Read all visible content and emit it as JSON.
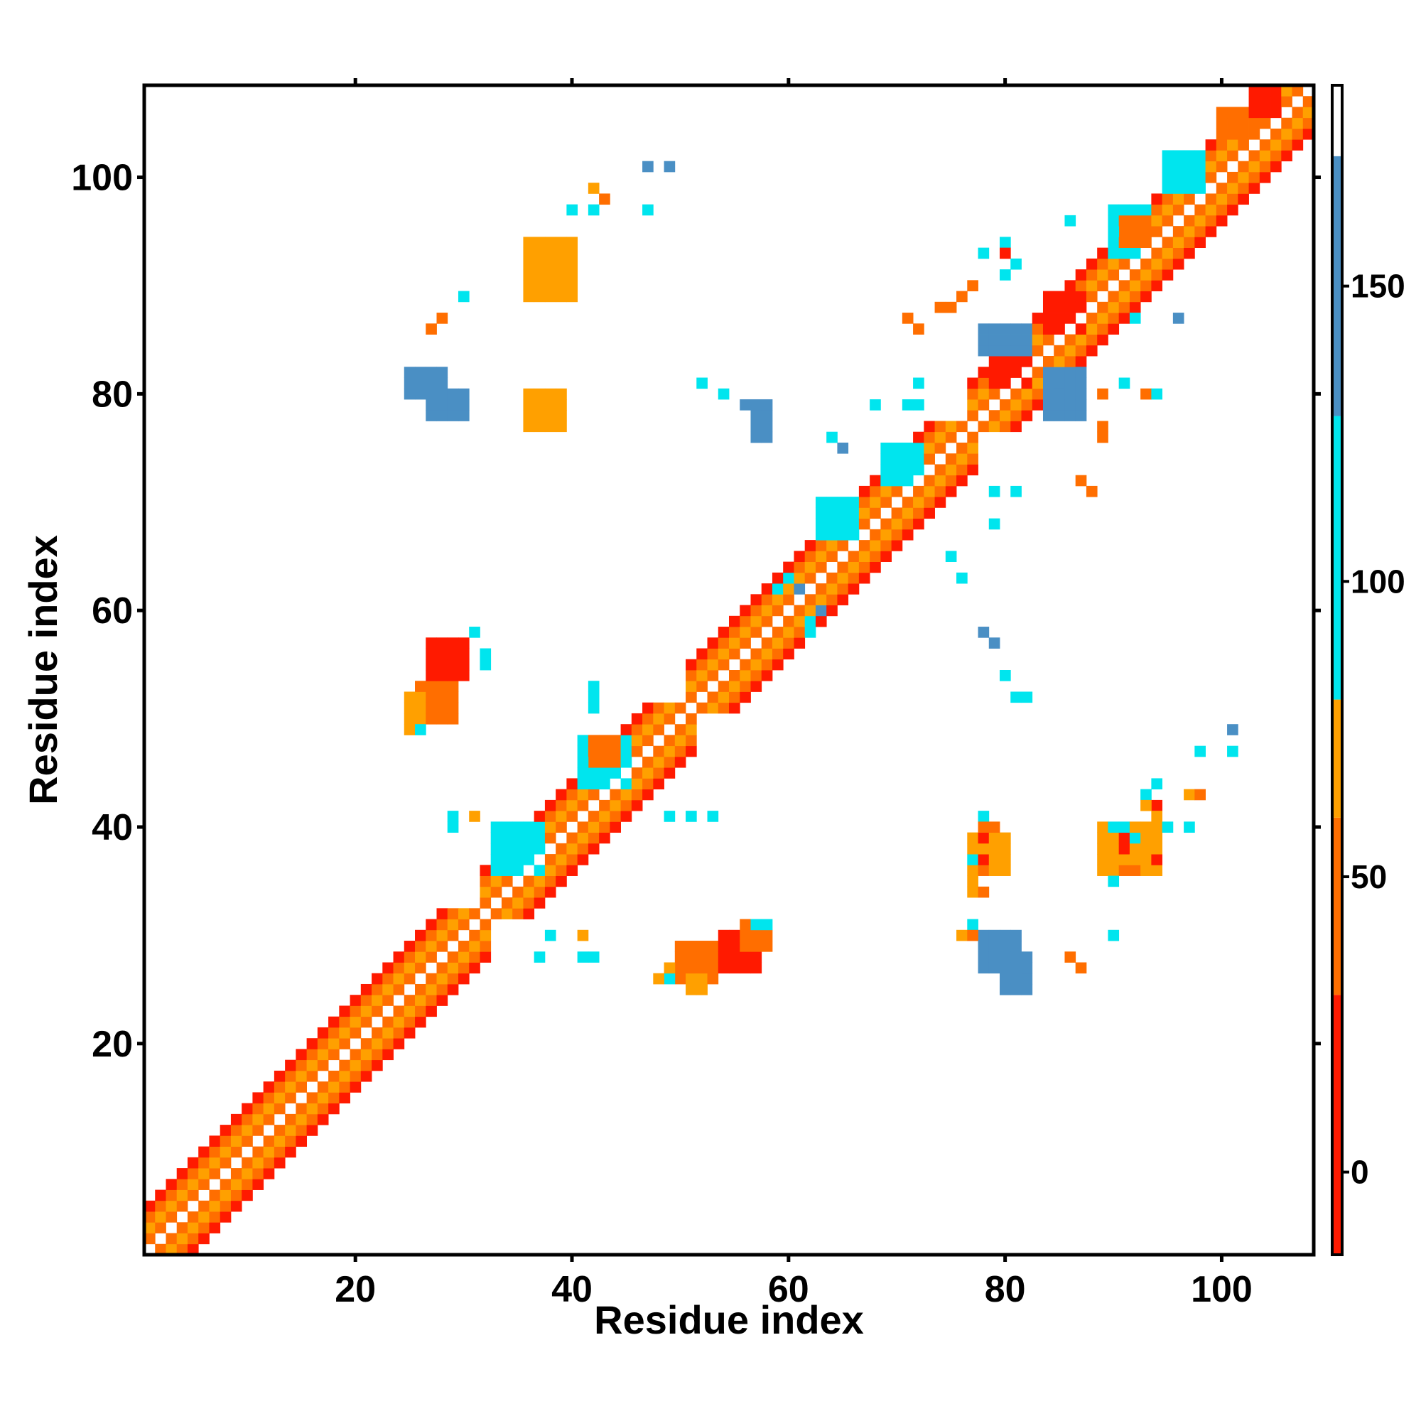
{
  "chart_data": {
    "type": "heatmap",
    "title": "",
    "xlabel": "Residue index",
    "ylabel": "Residue index",
    "xlim": [
      1,
      108
    ],
    "ylim": [
      1,
      108
    ],
    "x_ticks": [
      20,
      40,
      60,
      80,
      100
    ],
    "y_ticks": [
      20,
      40,
      60,
      80,
      100
    ],
    "symmetric": true,
    "grid": false,
    "colorbar": {
      "placement": "right",
      "range": [
        -14,
        184
      ],
      "ticks": [
        0,
        50,
        100,
        150
      ],
      "bands": [
        {
          "from": -14,
          "to": 30,
          "color": "#ff1a00"
        },
        {
          "from": 30,
          "to": 60,
          "color": "#ff6e00"
        },
        {
          "from": 60,
          "to": 80,
          "color": "#ffa000"
        },
        {
          "from": 80,
          "to": 128,
          "color": "#00e5ee"
        },
        {
          "from": 128,
          "to": 172,
          "color": "#4a8fc4"
        },
        {
          "from": 172,
          "to": 184,
          "color": "#ffffff"
        }
      ]
    },
    "levels": [
      {
        "id": "r",
        "name": "red",
        "value": 10,
        "color": "#ff1a00"
      },
      {
        "id": "o",
        "name": "orange-red",
        "value": 45,
        "color": "#ff6e00"
      },
      {
        "id": "y",
        "name": "orange",
        "value": 70,
        "color": "#ffa000"
      },
      {
        "id": "c",
        "name": "cyan",
        "value": 100,
        "color": "#00e5ee"
      },
      {
        "id": "b",
        "name": "blue",
        "value": 150,
        "color": "#4a8fc4"
      }
    ],
    "diagonal_band": {
      "offset_values": {
        "1": 45,
        "2": 70,
        "3": 45,
        "4": 10
      },
      "segments": [
        {
          "start": 1,
          "end": 31,
          "offsets": [
            1,
            2,
            3,
            4
          ]
        },
        {
          "start": 32,
          "end": 50,
          "offsets": [
            1,
            2,
            3,
            4
          ]
        },
        {
          "start": 51,
          "end": 76,
          "offsets": [
            1,
            2,
            3,
            4
          ]
        },
        {
          "start": 77,
          "end": 107,
          "offsets": [
            1,
            2,
            3,
            4
          ]
        }
      ]
    },
    "blocks": [
      {
        "i": [
          33,
          37
        ],
        "j": [
          36,
          40
        ],
        "v": 100
      },
      {
        "i": [
          41,
          45
        ],
        "j": [
          44,
          48
        ],
        "v": 100
      },
      {
        "i": [
          42,
          44
        ],
        "j": [
          46,
          48
        ],
        "v": 45
      },
      {
        "i": [
          63,
          66
        ],
        "j": [
          67,
          70
        ],
        "v": 100
      },
      {
        "i": [
          69,
          72
        ],
        "j": [
          72,
          75
        ],
        "v": 100
      },
      {
        "i": [
          79,
          82
        ],
        "j": [
          81,
          83
        ],
        "v": 10
      },
      {
        "i": [
          84,
          87
        ],
        "j": [
          86,
          89
        ],
        "v": 10
      },
      {
        "i": [
          90,
          93
        ],
        "j": [
          93,
          97
        ],
        "v": 100
      },
      {
        "i": [
          91,
          93
        ],
        "j": [
          94,
          96
        ],
        "v": 45
      },
      {
        "i": [
          95,
          98
        ],
        "j": [
          99,
          102
        ],
        "v": 100
      },
      {
        "i": [
          100,
          103
        ],
        "j": [
          104,
          106
        ],
        "v": 45
      },
      {
        "i": [
          103,
          105
        ],
        "j": [
          106,
          108
        ],
        "v": 10
      },
      {
        "i": [
          26,
          29
        ],
        "j": [
          50,
          53
        ],
        "v": 45
      },
      {
        "i": [
          27,
          30
        ],
        "j": [
          54,
          57
        ],
        "v": 10
      },
      {
        "i": [
          25,
          26
        ],
        "j": [
          49,
          52
        ],
        "v": 70
      },
      {
        "i": [
          50,
          53
        ],
        "j": [
          26,
          29
        ],
        "v": 45
      },
      {
        "i": [
          54,
          57
        ],
        "j": [
          27,
          30
        ],
        "v": 10
      },
      {
        "i": [
          56,
          58
        ],
        "j": [
          29,
          31
        ],
        "v": 45
      },
      {
        "i": [
          51,
          52
        ],
        "j": [
          25,
          26
        ],
        "v": 70
      },
      {
        "i": [
          25,
          28
        ],
        "j": [
          80,
          82
        ],
        "v": 150
      },
      {
        "i": [
          27,
          30
        ],
        "j": [
          78,
          80
        ],
        "v": 150
      },
      {
        "i": [
          78,
          81
        ],
        "j": [
          27,
          30
        ],
        "v": 150
      },
      {
        "i": [
          80,
          82
        ],
        "j": [
          25,
          28
        ],
        "v": 150
      },
      {
        "i": [
          78,
          82
        ],
        "j": [
          84,
          86
        ],
        "v": 150
      },
      {
        "i": [
          84,
          87
        ],
        "j": [
          78,
          82
        ],
        "v": 150
      },
      {
        "i": [
          36,
          39
        ],
        "j": [
          77,
          80
        ],
        "v": 70
      },
      {
        "i": [
          77,
          80
        ],
        "j": [
          36,
          39
        ],
        "v": 70
      },
      {
        "i": [
          36,
          40
        ],
        "j": [
          89,
          94
        ],
        "v": 70
      },
      {
        "i": [
          89,
          94
        ],
        "j": [
          36,
          40
        ],
        "v": 70
      },
      {
        "i": [
          57,
          58
        ],
        "j": [
          76,
          79
        ],
        "v": 150
      }
    ],
    "cells": [
      {
        "i": 47,
        "j": 101,
        "v": 150
      },
      {
        "i": 49,
        "j": 101,
        "v": 150
      },
      {
        "i": 42,
        "j": 99,
        "v": 70
      },
      {
        "i": 43,
        "j": 98,
        "v": 45
      },
      {
        "i": 47,
        "j": 97,
        "v": 100
      },
      {
        "i": 40,
        "j": 97,
        "v": 100
      },
      {
        "i": 42,
        "j": 97,
        "v": 100
      },
      {
        "i": 30,
        "j": 89,
        "v": 100
      },
      {
        "i": 28,
        "j": 87,
        "v": 45
      },
      {
        "i": 27,
        "j": 86,
        "v": 45
      },
      {
        "i": 52,
        "j": 81,
        "v": 100
      },
      {
        "i": 54,
        "j": 80,
        "v": 100
      },
      {
        "i": 56,
        "j": 79,
        "v": 150
      },
      {
        "i": 57,
        "j": 77,
        "v": 150
      },
      {
        "i": 68,
        "j": 79,
        "v": 100
      },
      {
        "i": 71,
        "j": 79,
        "v": 100
      },
      {
        "i": 72,
        "j": 81,
        "v": 100
      },
      {
        "i": 72,
        "j": 79,
        "v": 100
      },
      {
        "i": 64,
        "j": 76,
        "v": 100
      },
      {
        "i": 65,
        "j": 75,
        "v": 150
      },
      {
        "i": 79,
        "j": 71,
        "v": 100
      },
      {
        "i": 81,
        "j": 71,
        "v": 100
      },
      {
        "i": 79,
        "j": 68,
        "v": 100
      },
      {
        "i": 75,
        "j": 65,
        "v": 100
      },
      {
        "i": 76,
        "j": 63,
        "v": 100
      },
      {
        "i": 89,
        "j": 80,
        "v": 45
      },
      {
        "i": 91,
        "j": 81,
        "v": 100
      },
      {
        "i": 93,
        "j": 80,
        "v": 45
      },
      {
        "i": 89,
        "j": 77,
        "v": 45
      },
      {
        "i": 88,
        "j": 71,
        "v": 45
      },
      {
        "i": 87,
        "j": 72,
        "v": 45
      },
      {
        "i": 89,
        "j": 76,
        "v": 45
      },
      {
        "i": 94,
        "j": 80,
        "v": 100
      },
      {
        "i": 71,
        "j": 87,
        "v": 45
      },
      {
        "i": 72,
        "j": 86,
        "v": 45
      },
      {
        "i": 74,
        "j": 88,
        "v": 45
      },
      {
        "i": 75,
        "j": 88,
        "v": 45
      },
      {
        "i": 76,
        "j": 89,
        "v": 45
      },
      {
        "i": 80,
        "j": 91,
        "v": 100
      },
      {
        "i": 81,
        "j": 92,
        "v": 100
      },
      {
        "i": 77,
        "j": 90,
        "v": 45
      },
      {
        "i": 78,
        "j": 93,
        "v": 100
      },
      {
        "i": 80,
        "j": 94,
        "v": 100
      },
      {
        "i": 80,
        "j": 93,
        "v": 10
      },
      {
        "i": 86,
        "j": 96,
        "v": 100
      },
      {
        "i": 92,
        "j": 87,
        "v": 100
      },
      {
        "i": 96,
        "j": 87,
        "v": 150
      },
      {
        "i": 78,
        "j": 58,
        "v": 150
      },
      {
        "i": 79,
        "j": 57,
        "v": 150
      },
      {
        "i": 80,
        "j": 54,
        "v": 100
      },
      {
        "i": 81,
        "j": 52,
        "v": 100
      },
      {
        "i": 82,
        "j": 52,
        "v": 100
      },
      {
        "i": 101,
        "j": 49,
        "v": 150
      },
      {
        "i": 101,
        "j": 47,
        "v": 100
      },
      {
        "i": 98,
        "j": 47,
        "v": 100
      },
      {
        "i": 94,
        "j": 44,
        "v": 100
      },
      {
        "i": 93,
        "j": 43,
        "v": 100
      },
      {
        "i": 94,
        "j": 42,
        "v": 10
      },
      {
        "i": 97,
        "j": 43,
        "v": 70
      },
      {
        "i": 98,
        "j": 43,
        "v": 45
      },
      {
        "i": 97,
        "j": 40,
        "v": 100
      },
      {
        "i": 95,
        "j": 40,
        "v": 100
      },
      {
        "i": 94,
        "j": 41,
        "v": 70
      },
      {
        "i": 93,
        "j": 42,
        "v": 70
      },
      {
        "i": 91,
        "j": 40,
        "v": 100
      },
      {
        "i": 90,
        "j": 40,
        "v": 100
      },
      {
        "i": 91,
        "j": 39,
        "v": 10
      },
      {
        "i": 92,
        "j": 39,
        "v": 100
      },
      {
        "i": 91,
        "j": 38,
        "v": 10
      },
      {
        "i": 90,
        "j": 37,
        "v": 70
      },
      {
        "i": 91,
        "j": 36,
        "v": 45
      },
      {
        "i": 90,
        "j": 35,
        "v": 100
      },
      {
        "i": 94,
        "j": 37,
        "v": 10
      },
      {
        "i": 92,
        "j": 36,
        "v": 45
      },
      {
        "i": 90,
        "j": 30,
        "v": 100
      },
      {
        "i": 86,
        "j": 28,
        "v": 45
      },
      {
        "i": 87,
        "j": 27,
        "v": 45
      },
      {
        "i": 78,
        "j": 41,
        "v": 100
      },
      {
        "i": 78,
        "j": 40,
        "v": 45
      },
      {
        "i": 79,
        "j": 40,
        "v": 45
      },
      {
        "i": 78,
        "j": 39,
        "v": 10
      },
      {
        "i": 77,
        "j": 37,
        "v": 100
      },
      {
        "i": 78,
        "j": 37,
        "v": 10
      },
      {
        "i": 79,
        "j": 37,
        "v": 70
      },
      {
        "i": 80,
        "j": 37,
        "v": 70
      },
      {
        "i": 77,
        "j": 36,
        "v": 70
      },
      {
        "i": 78,
        "j": 36,
        "v": 45
      },
      {
        "i": 77,
        "j": 35,
        "v": 70
      },
      {
        "i": 77,
        "j": 34,
        "v": 70
      },
      {
        "i": 78,
        "j": 34,
        "v": 45
      },
      {
        "i": 77,
        "j": 31,
        "v": 100
      },
      {
        "i": 76,
        "j": 30,
        "v": 70
      },
      {
        "i": 77,
        "j": 30,
        "v": 45
      },
      {
        "i": 29,
        "j": 41,
        "v": 100
      },
      {
        "i": 29,
        "j": 40,
        "v": 100
      },
      {
        "i": 31,
        "j": 41,
        "v": 70
      },
      {
        "i": 49,
        "j": 41,
        "v": 100
      },
      {
        "i": 51,
        "j": 41,
        "v": 100
      },
      {
        "i": 53,
        "j": 41,
        "v": 100
      },
      {
        "i": 41,
        "j": 30,
        "v": 70
      },
      {
        "i": 41,
        "j": 28,
        "v": 100
      },
      {
        "i": 42,
        "j": 28,
        "v": 100
      },
      {
        "i": 37,
        "j": 28,
        "v": 100
      },
      {
        "i": 38,
        "j": 30,
        "v": 100
      },
      {
        "i": 42,
        "j": 53,
        "v": 100
      },
      {
        "i": 42,
        "j": 52,
        "v": 100
      },
      {
        "i": 42,
        "j": 51,
        "v": 100
      },
      {
        "i": 31,
        "j": 58,
        "v": 100
      },
      {
        "i": 32,
        "j": 56,
        "v": 100
      },
      {
        "i": 32,
        "j": 55,
        "v": 100
      },
      {
        "i": 26,
        "j": 49,
        "v": 100
      },
      {
        "i": 57,
        "j": 31,
        "v": 100
      },
      {
        "i": 58,
        "j": 31,
        "v": 100
      },
      {
        "i": 49,
        "j": 26,
        "v": 100
      },
      {
        "i": 48,
        "j": 26,
        "v": 70
      },
      {
        "i": 49,
        "j": 27,
        "v": 70
      },
      {
        "i": 59,
        "j": 62,
        "v": 100
      },
      {
        "i": 60,
        "j": 63,
        "v": 100
      },
      {
        "i": 61,
        "j": 62,
        "v": 150
      },
      {
        "i": 62,
        "j": 59,
        "v": 100
      },
      {
        "i": 63,
        "j": 60,
        "v": 150
      },
      {
        "i": 62,
        "j": 58,
        "v": 100
      }
    ]
  }
}
